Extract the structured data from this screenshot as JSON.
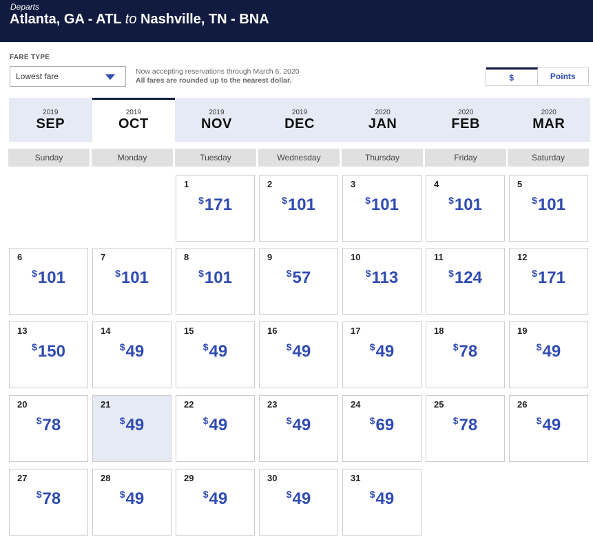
{
  "header": {
    "departs_label": "Departs",
    "origin": "Atlanta, GA - ATL",
    "to_word": "to",
    "destination": "Nashville, TN - BNA"
  },
  "controls": {
    "fare_type_label": "FARE TYPE",
    "fare_type_value": "Lowest fare",
    "notice_line1": "Now accepting reservations through March 6, 2020",
    "notice_line2": "All fares are rounded up to the nearest dollar.",
    "currency_options": [
      "$",
      "Points"
    ],
    "currency_selected": "$"
  },
  "months": [
    {
      "year": "2019",
      "month": "SEP"
    },
    {
      "year": "2019",
      "month": "OCT"
    },
    {
      "year": "2019",
      "month": "NOV"
    },
    {
      "year": "2019",
      "month": "DEC"
    },
    {
      "year": "2020",
      "month": "JAN"
    },
    {
      "year": "2020",
      "month": "FEB"
    },
    {
      "year": "2020",
      "month": "MAR"
    }
  ],
  "active_month": "OCT",
  "weekdays": [
    "Sunday",
    "Monday",
    "Tuesday",
    "Wednesday",
    "Thursday",
    "Friday",
    "Saturday"
  ],
  "currency_symbol": "$",
  "days": [
    {
      "day": "1",
      "price": "171"
    },
    {
      "day": "2",
      "price": "101"
    },
    {
      "day": "3",
      "price": "101"
    },
    {
      "day": "4",
      "price": "101"
    },
    {
      "day": "5",
      "price": "101"
    },
    {
      "day": "6",
      "price": "101"
    },
    {
      "day": "7",
      "price": "101"
    },
    {
      "day": "8",
      "price": "101"
    },
    {
      "day": "9",
      "price": "57"
    },
    {
      "day": "10",
      "price": "113"
    },
    {
      "day": "11",
      "price": "124"
    },
    {
      "day": "12",
      "price": "171"
    },
    {
      "day": "13",
      "price": "150"
    },
    {
      "day": "14",
      "price": "49"
    },
    {
      "day": "15",
      "price": "49"
    },
    {
      "day": "16",
      "price": "49"
    },
    {
      "day": "17",
      "price": "49"
    },
    {
      "day": "18",
      "price": "78"
    },
    {
      "day": "19",
      "price": "49"
    },
    {
      "day": "20",
      "price": "78"
    },
    {
      "day": "21",
      "price": "49"
    },
    {
      "day": "22",
      "price": "49"
    },
    {
      "day": "23",
      "price": "49"
    },
    {
      "day": "24",
      "price": "69"
    },
    {
      "day": "25",
      "price": "78"
    },
    {
      "day": "26",
      "price": "49"
    },
    {
      "day": "27",
      "price": "78"
    },
    {
      "day": "28",
      "price": "49"
    },
    {
      "day": "29",
      "price": "49"
    },
    {
      "day": "30",
      "price": "49"
    },
    {
      "day": "31",
      "price": "49"
    }
  ],
  "selected_day": "21",
  "colors": {
    "header_bg": "#111b40",
    "price_blue": "#304cb2",
    "selected_bg": "#e6eaf5"
  }
}
